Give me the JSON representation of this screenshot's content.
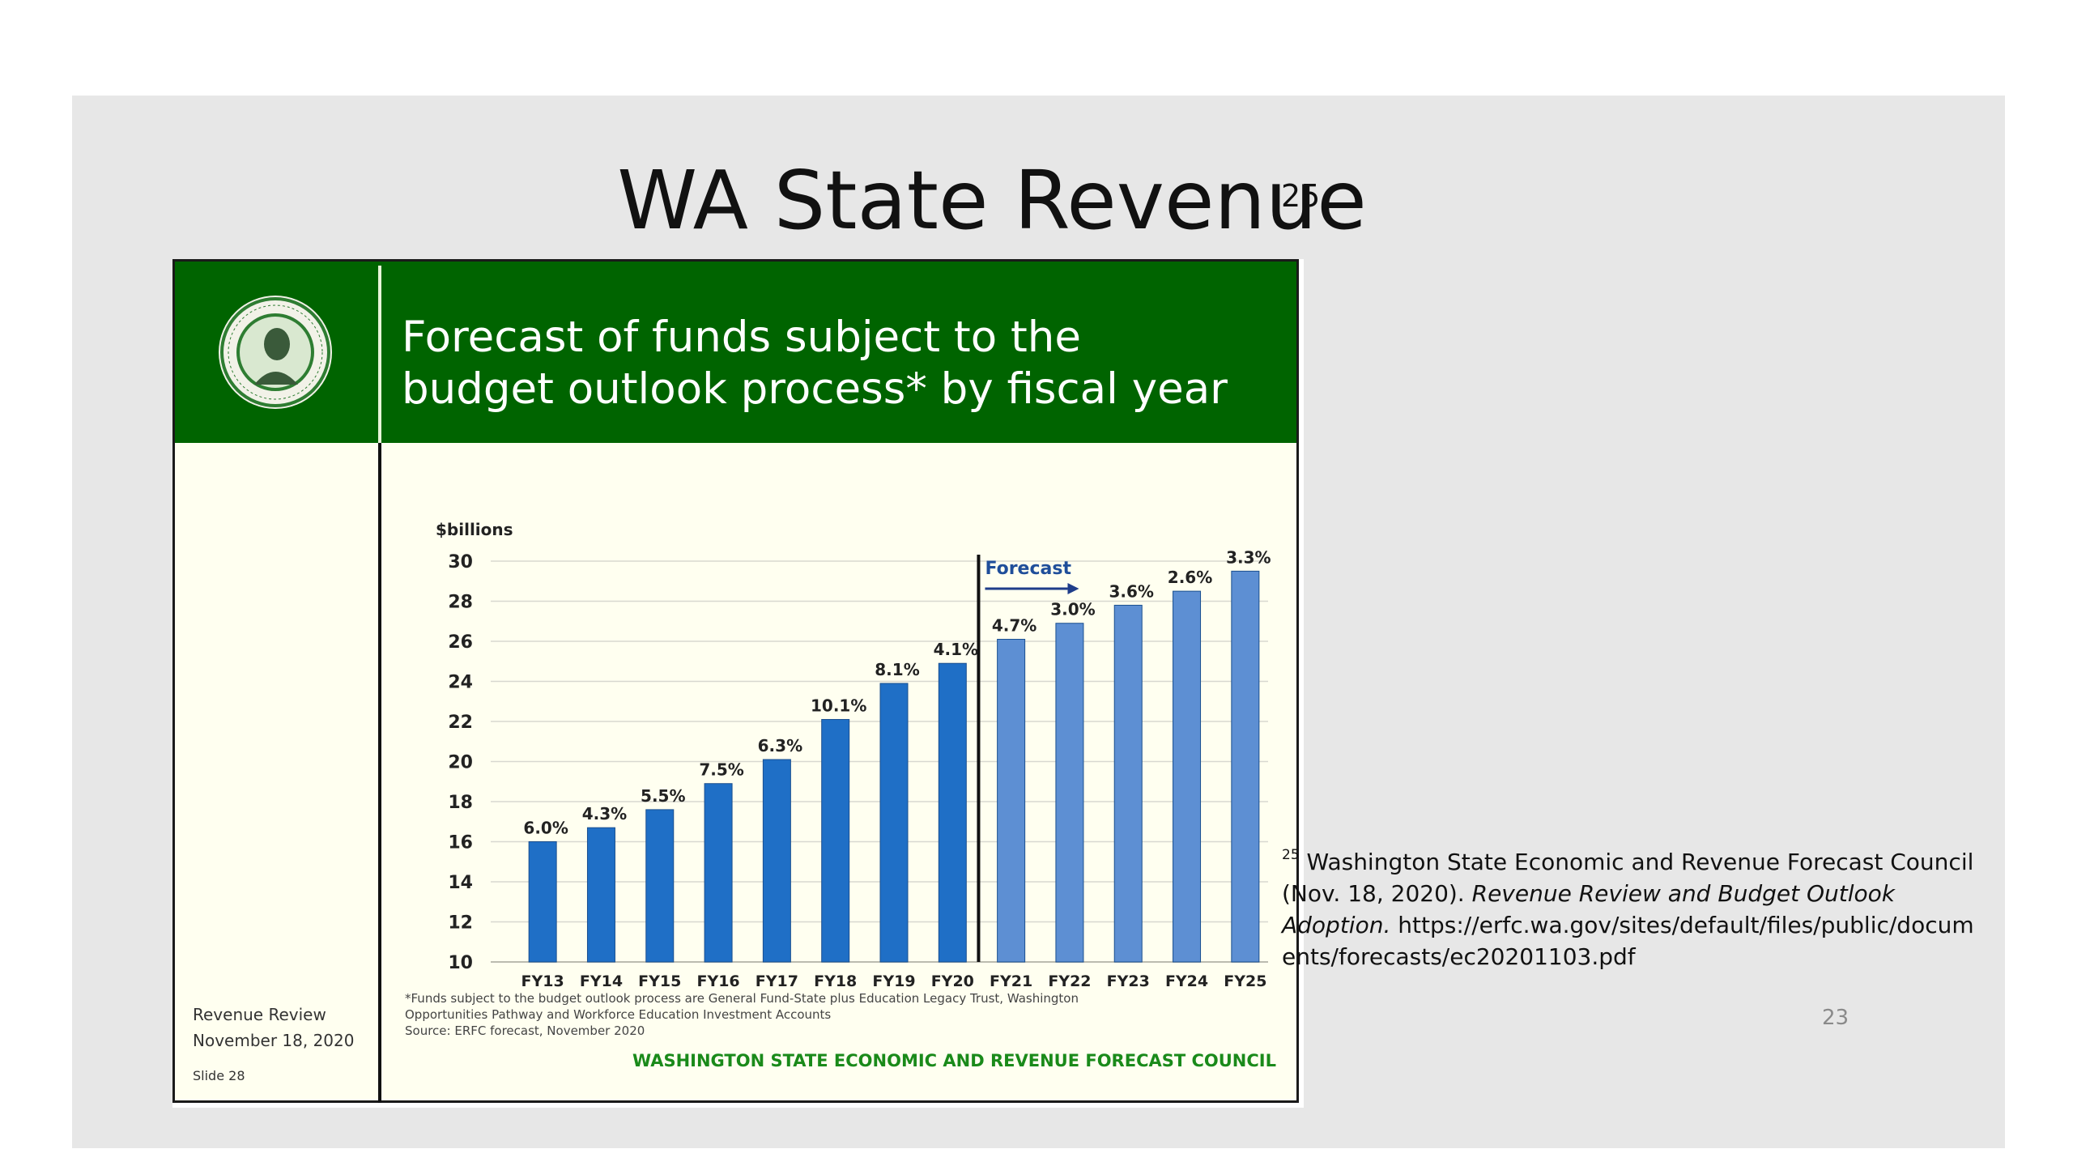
{
  "slide": {
    "title": "WA State Revenue",
    "ref_number": "25",
    "slide_number": "23",
    "citation": {
      "sup": "25",
      "line1": "Washington State Economic and Revenue Forecast Council (Nov. 18, 2020).",
      "italic": "Revenue Review and Budget Outlook Adoption.",
      "url": "https://erfc.wa.gov/sites/default/files/public/documents/forecasts/ec20201103.pdf"
    }
  },
  "embedded_slide": {
    "title": "Forecast of funds subject to the\nbudget outlook process* by fiscal year",
    "review_line1": "Revenue Review",
    "review_line2": "November 18, 2020",
    "slide_label": "Slide 28",
    "footnote": "*Funds subject to the budget outlook process are General Fund-State plus Education Legacy Trust, Washington\nOpportunities Pathway and Workforce Education Investment Accounts\nSource: ERFC forecast, November 2020",
    "council": "WASHINGTON STATE ECONOMIC AND REVENUE FORECAST COUNCIL",
    "colors": {
      "banner": "#006400",
      "actual_bar": "#1f6fc6",
      "forecast_bar": "#5d8fd3",
      "council_text": "#1a8a1a"
    }
  },
  "chart_data": {
    "type": "bar",
    "title": "",
    "ylabel": "$billions",
    "xlabel": "",
    "ylim": [
      10,
      30
    ],
    "yticks": [
      10,
      12,
      14,
      16,
      18,
      20,
      22,
      24,
      26,
      28,
      30
    ],
    "grid": true,
    "categories": [
      "FY13",
      "FY14",
      "FY15",
      "FY16",
      "FY17",
      "FY18",
      "FY19",
      "FY20",
      "FY21",
      "FY22",
      "FY23",
      "FY24",
      "FY25"
    ],
    "values": [
      16.0,
      16.7,
      17.6,
      18.9,
      20.1,
      22.1,
      23.9,
      24.9,
      26.1,
      26.9,
      27.8,
      28.5,
      29.5
    ],
    "growth_labels": [
      "6.0%",
      "4.3%",
      "5.5%",
      "7.5%",
      "6.3%",
      "10.1%",
      "8.1%",
      "4.1%",
      "4.7%",
      "3.0%",
      "3.6%",
      "2.6%",
      "3.3%"
    ],
    "forecast_start": "FY21",
    "forecast_label": "Forecast"
  }
}
